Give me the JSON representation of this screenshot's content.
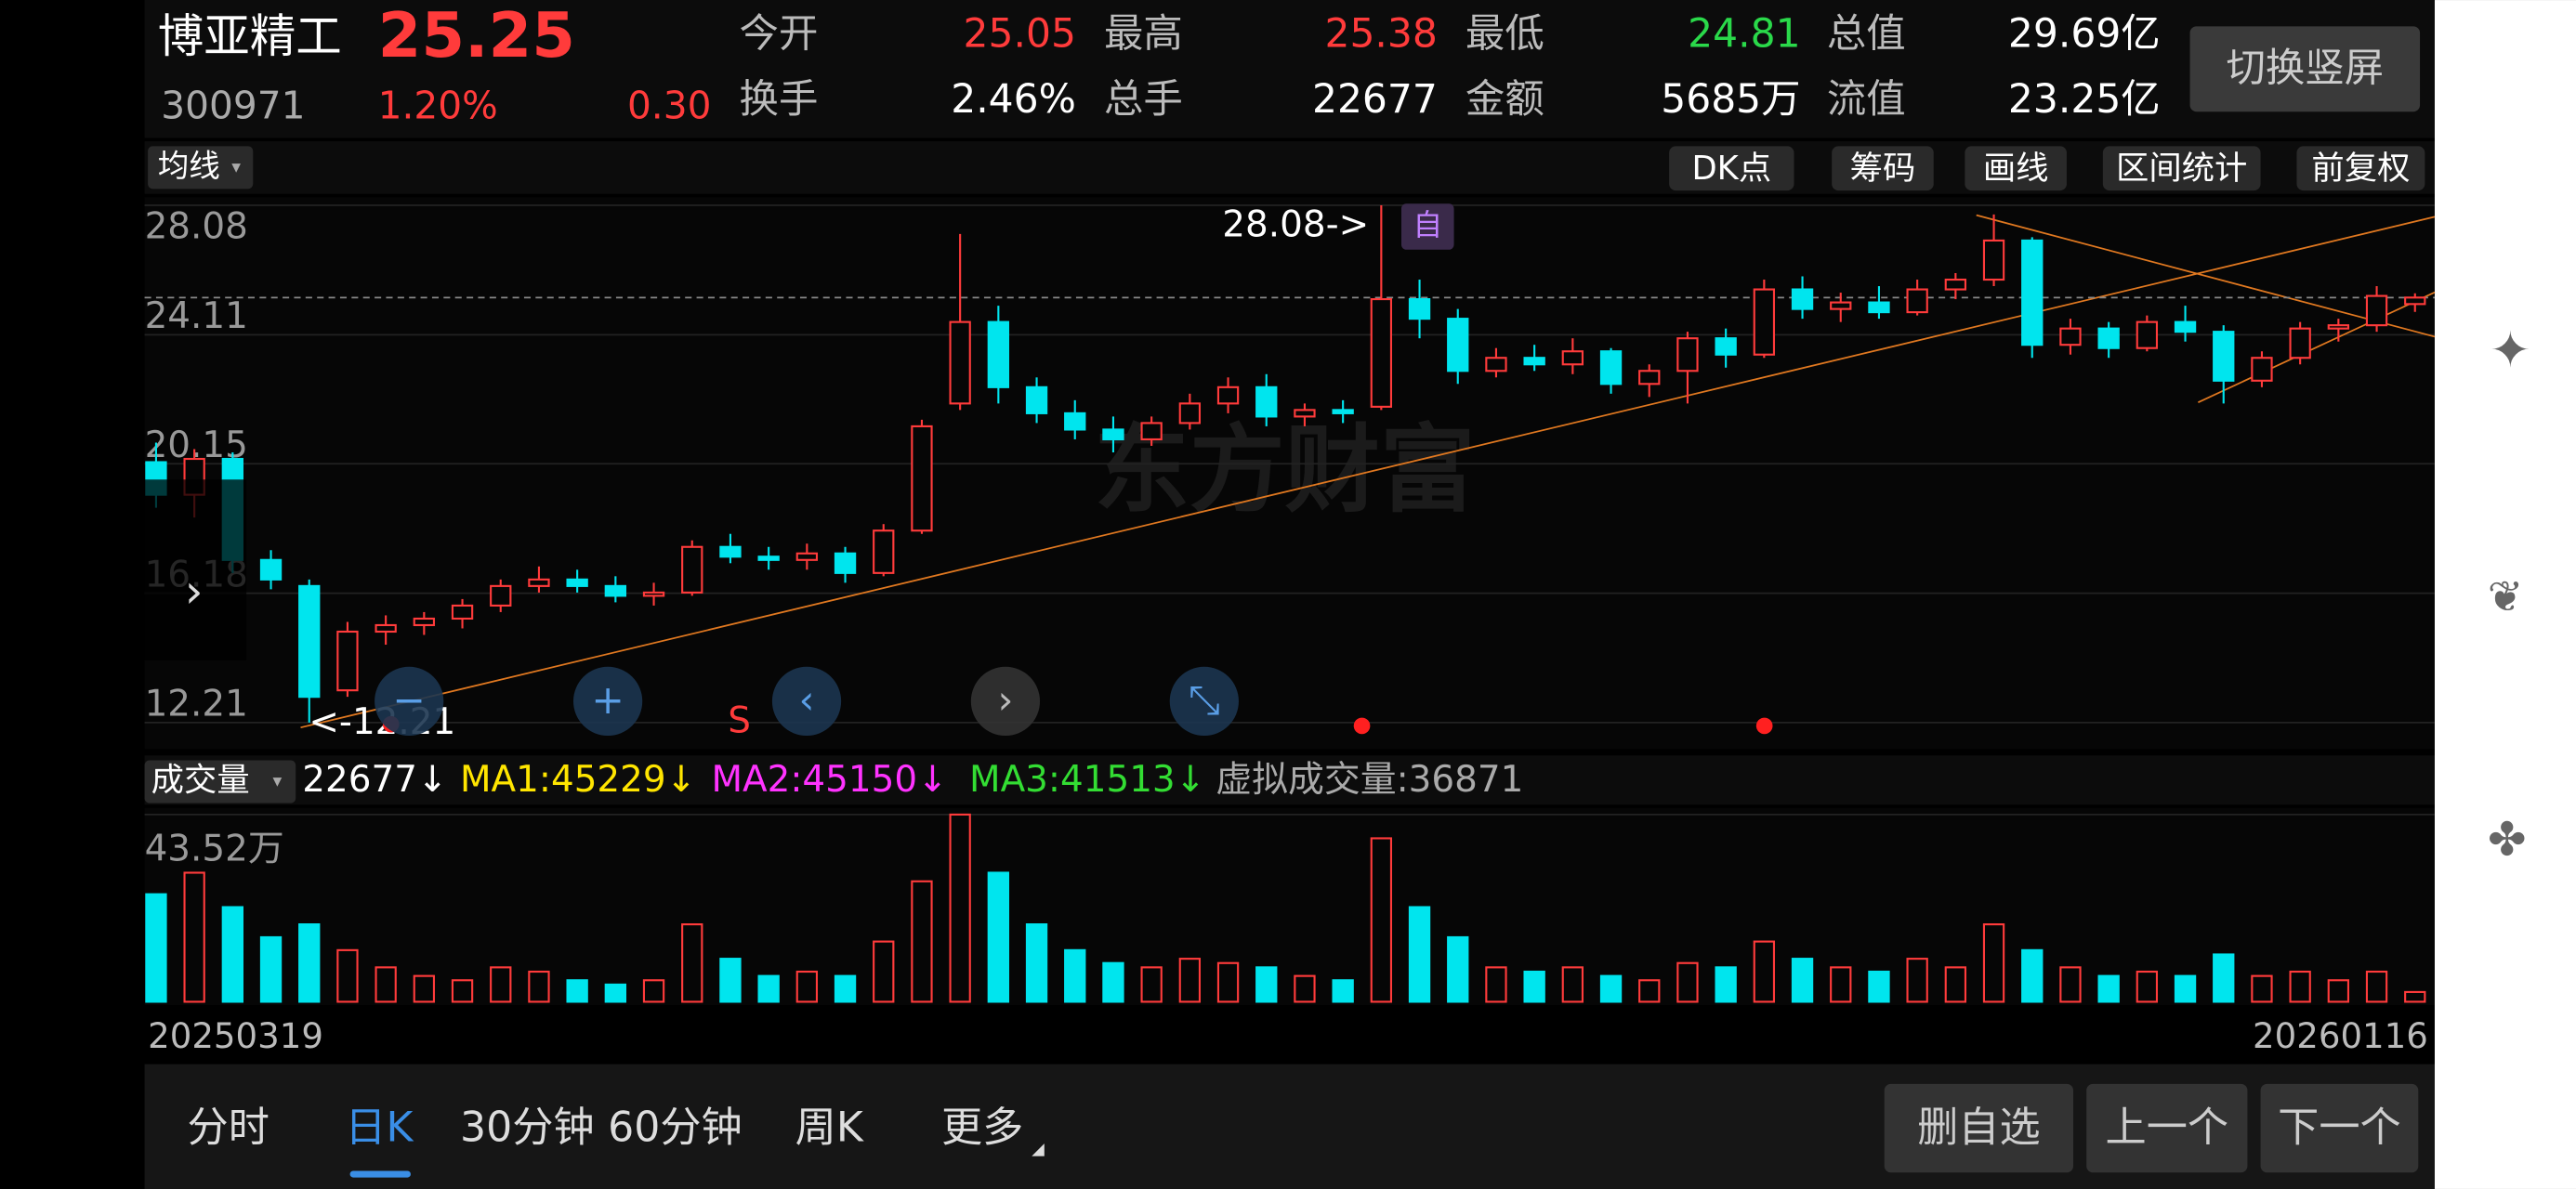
{
  "header": {
    "name": "博亚精工",
    "price": "25.25",
    "code": "300971",
    "change_pct": "1.20%",
    "change": "0.30",
    "quotes": [
      {
        "label": "今开",
        "value": "25.05",
        "color": "#ff3b3b"
      },
      {
        "label": "最高",
        "value": "25.38",
        "color": "#ff3b3b"
      },
      {
        "label": "最低",
        "value": "24.81",
        "color": "#2ad94a"
      },
      {
        "label": "总值",
        "value": "29.69亿",
        "color": "#ffffff"
      },
      {
        "label": "换手",
        "value": "2.46%",
        "color": "#ffffff"
      },
      {
        "label": "总手",
        "value": "22677",
        "color": "#ffffff"
      },
      {
        "label": "金额",
        "value": "5685万",
        "color": "#ffffff"
      },
      {
        "label": "流值",
        "value": "23.25亿",
        "color": "#ffffff"
      }
    ],
    "button": "切换竖屏"
  },
  "toolbar": {
    "left": "均线",
    "right": [
      "DK点",
      "筹码",
      "画线",
      "区间统计",
      "前复权"
    ]
  },
  "chart_data": {
    "type": "candlestick",
    "up_color": "#ff3b3b",
    "down_color": "#00e5ee",
    "watermark": "东方财富",
    "ylim": [
      12.21,
      28.08
    ],
    "yticks": [
      12.21,
      16.18,
      20.15,
      24.11,
      28.08
    ],
    "grid": true,
    "annotations": {
      "high": "28.08->",
      "low": "<-12.21",
      "signal": "S"
    },
    "candles": [
      {
        "o": 20.2,
        "h": 20.8,
        "l": 18.8,
        "c": 19.2
      },
      {
        "o": 19.2,
        "h": 20.6,
        "l": 18.5,
        "c": 20.3
      },
      {
        "o": 20.3,
        "h": 20.5,
        "l": 16.8,
        "c": 17.2
      },
      {
        "o": 17.2,
        "h": 17.5,
        "l": 16.3,
        "c": 16.6
      },
      {
        "o": 16.4,
        "h": 16.6,
        "l": 12.21,
        "c": 13.0
      },
      {
        "o": 13.2,
        "h": 15.3,
        "l": 13.0,
        "c": 15.0
      },
      {
        "o": 15.0,
        "h": 15.5,
        "l": 14.6,
        "c": 15.2
      },
      {
        "o": 15.2,
        "h": 15.6,
        "l": 14.9,
        "c": 15.4
      },
      {
        "o": 15.4,
        "h": 16.0,
        "l": 15.1,
        "c": 15.8
      },
      {
        "o": 15.8,
        "h": 16.6,
        "l": 15.6,
        "c": 16.4
      },
      {
        "o": 16.4,
        "h": 17.0,
        "l": 16.2,
        "c": 16.6
      },
      {
        "o": 16.6,
        "h": 16.9,
        "l": 16.2,
        "c": 16.4
      },
      {
        "o": 16.4,
        "h": 16.7,
        "l": 15.9,
        "c": 16.1
      },
      {
        "o": 16.1,
        "h": 16.5,
        "l": 15.8,
        "c": 16.2
      },
      {
        "o": 16.2,
        "h": 17.8,
        "l": 16.1,
        "c": 17.6
      },
      {
        "o": 17.6,
        "h": 18.0,
        "l": 17.1,
        "c": 17.3
      },
      {
        "o": 17.3,
        "h": 17.6,
        "l": 16.9,
        "c": 17.2
      },
      {
        "o": 17.2,
        "h": 17.7,
        "l": 16.9,
        "c": 17.4
      },
      {
        "o": 17.4,
        "h": 17.6,
        "l": 16.5,
        "c": 16.8
      },
      {
        "o": 16.8,
        "h": 18.3,
        "l": 16.7,
        "c": 18.1
      },
      {
        "o": 18.1,
        "h": 21.5,
        "l": 18.0,
        "c": 21.3
      },
      {
        "o": 22.0,
        "h": 27.2,
        "l": 21.8,
        "c": 24.5
      },
      {
        "o": 24.5,
        "h": 25.0,
        "l": 22.0,
        "c": 22.5
      },
      {
        "o": 22.5,
        "h": 22.8,
        "l": 21.4,
        "c": 21.7
      },
      {
        "o": 21.7,
        "h": 22.1,
        "l": 20.9,
        "c": 21.2
      },
      {
        "o": 21.2,
        "h": 21.6,
        "l": 20.5,
        "c": 20.9
      },
      {
        "o": 20.9,
        "h": 21.6,
        "l": 20.7,
        "c": 21.4
      },
      {
        "o": 21.4,
        "h": 22.3,
        "l": 21.2,
        "c": 22.0
      },
      {
        "o": 22.0,
        "h": 22.8,
        "l": 21.7,
        "c": 22.5
      },
      {
        "o": 22.5,
        "h": 22.9,
        "l": 21.3,
        "c": 21.6
      },
      {
        "o": 21.6,
        "h": 22.0,
        "l": 21.3,
        "c": 21.8
      },
      {
        "o": 21.8,
        "h": 22.1,
        "l": 21.4,
        "c": 21.7
      },
      {
        "o": 21.9,
        "h": 28.08,
        "l": 21.8,
        "c": 25.2
      },
      {
        "o": 25.2,
        "h": 25.8,
        "l": 24.0,
        "c": 24.6
      },
      {
        "o": 24.6,
        "h": 24.9,
        "l": 22.6,
        "c": 23.0
      },
      {
        "o": 23.0,
        "h": 23.7,
        "l": 22.8,
        "c": 23.4
      },
      {
        "o": 23.4,
        "h": 23.8,
        "l": 23.0,
        "c": 23.2
      },
      {
        "o": 23.2,
        "h": 24.0,
        "l": 22.9,
        "c": 23.6
      },
      {
        "o": 23.6,
        "h": 23.7,
        "l": 22.3,
        "c": 22.6
      },
      {
        "o": 22.6,
        "h": 23.2,
        "l": 22.2,
        "c": 23.0
      },
      {
        "o": 23.0,
        "h": 24.2,
        "l": 22.0,
        "c": 24.0
      },
      {
        "o": 24.0,
        "h": 24.3,
        "l": 23.1,
        "c": 23.5
      },
      {
        "o": 23.5,
        "h": 25.8,
        "l": 23.4,
        "c": 25.5
      },
      {
        "o": 25.5,
        "h": 25.9,
        "l": 24.6,
        "c": 24.9
      },
      {
        "o": 24.9,
        "h": 25.4,
        "l": 24.5,
        "c": 25.1
      },
      {
        "o": 25.1,
        "h": 25.6,
        "l": 24.6,
        "c": 24.8
      },
      {
        "o": 24.8,
        "h": 25.8,
        "l": 24.7,
        "c": 25.5
      },
      {
        "o": 25.5,
        "h": 26.0,
        "l": 25.2,
        "c": 25.8
      },
      {
        "o": 25.8,
        "h": 27.8,
        "l": 25.6,
        "c": 27.0
      },
      {
        "o": 27.0,
        "h": 27.1,
        "l": 23.4,
        "c": 23.8
      },
      {
        "o": 23.8,
        "h": 24.6,
        "l": 23.5,
        "c": 24.3
      },
      {
        "o": 24.3,
        "h": 24.5,
        "l": 23.4,
        "c": 23.7
      },
      {
        "o": 23.7,
        "h": 24.7,
        "l": 23.6,
        "c": 24.5
      },
      {
        "o": 24.5,
        "h": 25.0,
        "l": 23.9,
        "c": 24.2
      },
      {
        "o": 24.2,
        "h": 24.4,
        "l": 22.0,
        "c": 22.7
      },
      {
        "o": 22.7,
        "h": 23.6,
        "l": 22.5,
        "c": 23.4
      },
      {
        "o": 23.4,
        "h": 24.5,
        "l": 23.2,
        "c": 24.3
      },
      {
        "o": 24.3,
        "h": 24.6,
        "l": 23.9,
        "c": 24.4
      },
      {
        "o": 24.4,
        "h": 25.6,
        "l": 24.2,
        "c": 25.3
      },
      {
        "o": 25.05,
        "h": 25.38,
        "l": 24.81,
        "c": 25.25
      }
    ],
    "volume": {
      "title": "成交量",
      "ylim": [
        0,
        43.52
      ],
      "yticks": [
        {
          "value": 43.52,
          "label": "43.52万"
        }
      ],
      "legend": [
        {
          "text": "22677↓",
          "color": "#ffffff"
        },
        {
          "text": "MA1:45229↓",
          "color": "#ffe500"
        },
        {
          "text": "MA2:45150↓",
          "color": "#ff33ff"
        },
        {
          "text": "MA3:41513↓",
          "color": "#33dd33"
        },
        {
          "text": "虚拟成交量:36871",
          "color": "#aaaaaa"
        }
      ],
      "values": [
        25,
        30,
        22,
        15,
        18,
        12,
        8,
        6,
        5,
        8,
        7,
        5,
        4,
        5,
        18,
        10,
        6,
        7,
        6,
        14,
        28,
        43.52,
        30,
        18,
        12,
        9,
        8,
        10,
        9,
        8,
        6,
        5,
        38,
        22,
        15,
        8,
        7,
        8,
        6,
        5,
        9,
        8,
        14,
        10,
        8,
        7,
        10,
        8,
        18,
        12,
        8,
        6,
        7,
        6,
        11,
        6,
        7,
        5,
        7,
        2.27
      ]
    },
    "x_labels": [
      "20250319",
      "20260116"
    ]
  },
  "tabs": [
    "分时",
    "日K",
    "30分钟",
    "60分钟",
    "周K",
    "更多"
  ],
  "buttons": [
    "删自选",
    "上一个",
    "下一个"
  ]
}
